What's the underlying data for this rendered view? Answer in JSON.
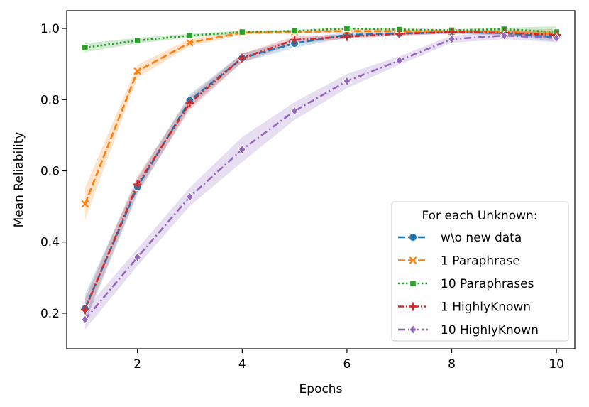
{
  "chart_data": {
    "type": "line",
    "title": "",
    "xlabel": "Epochs",
    "ylabel": "Mean Reliability",
    "xlim": [
      0.65,
      10.35
    ],
    "ylim": [
      0.1,
      1.05
    ],
    "xticks": [
      2,
      4,
      6,
      8,
      10
    ],
    "yticks": [
      0.2,
      0.4,
      0.6,
      0.8,
      1.0
    ],
    "ytick_labels": [
      "0.2",
      "0.4",
      "0.6",
      "0.8",
      "1.0"
    ],
    "x": [
      1,
      2,
      3,
      4,
      5,
      6,
      7,
      8,
      9,
      10
    ],
    "legend": {
      "title": "For each Unknown:",
      "position": "lower-right"
    },
    "series": [
      {
        "name": "w\\o new data",
        "color": "#1f77b4",
        "dash": "dashed",
        "marker": "circle",
        "values": [
          0.213,
          0.555,
          0.797,
          0.917,
          0.958,
          0.982,
          0.986,
          0.99,
          0.987,
          0.975
        ],
        "band": [
          0.04,
          0.022,
          0.018,
          0.012,
          0.012,
          0.008,
          0.006,
          0.005,
          0.006,
          0.012
        ]
      },
      {
        "name": "1 Paraphrase",
        "color": "#ff7f0e",
        "dash": "dashed",
        "marker": "x",
        "values": [
          0.507,
          0.88,
          0.96,
          0.988,
          0.99,
          0.993,
          0.992,
          0.992,
          0.99,
          0.985
        ],
        "band": [
          0.045,
          0.018,
          0.01,
          0.005,
          0.004,
          0.004,
          0.004,
          0.004,
          0.006,
          0.014
        ]
      },
      {
        "name": "10  Paraphrases",
        "color": "#2ca02c",
        "dash": "dotted",
        "marker": "square",
        "values": [
          0.946,
          0.966,
          0.98,
          0.99,
          0.993,
          1.0,
          0.997,
          0.995,
          0.998,
          0.99
        ],
        "band": [
          0.012,
          0.008,
          0.005,
          0.004,
          0.003,
          0.003,
          0.003,
          0.003,
          0.004,
          0.016
        ]
      },
      {
        "name": "1 HighlyKnown",
        "color": "#d62728",
        "dash": "dashdotdot",
        "marker": "plus",
        "values": [
          0.21,
          0.562,
          0.79,
          0.917,
          0.968,
          0.977,
          0.985,
          0.99,
          0.988,
          0.982
        ],
        "band": [
          0.03,
          0.022,
          0.018,
          0.012,
          0.01,
          0.006,
          0.005,
          0.004,
          0.005,
          0.01
        ]
      },
      {
        "name": "10 HighlyKnown",
        "color": "#9467bd",
        "dash": "dashdot",
        "marker": "diamond",
        "values": [
          0.182,
          0.357,
          0.527,
          0.66,
          0.768,
          0.852,
          0.91,
          0.97,
          0.98,
          0.973
        ],
        "band": [
          0.028,
          0.024,
          0.026,
          0.035,
          0.025,
          0.02,
          0.012,
          0.01,
          0.01,
          0.012
        ]
      }
    ]
  }
}
